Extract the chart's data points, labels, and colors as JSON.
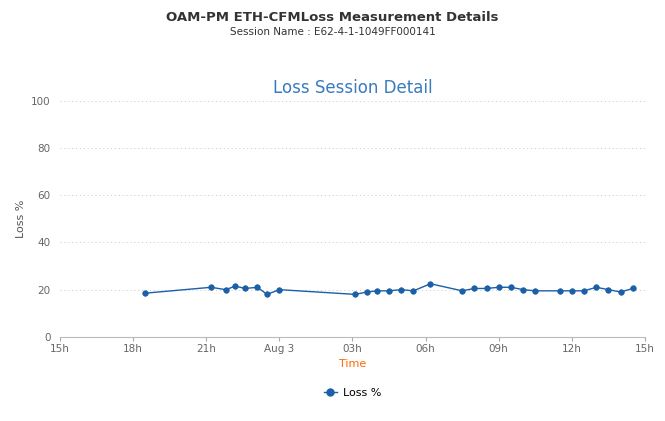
{
  "title": "OAM-PM ETH-CFMLoss Measurement Details",
  "subtitle": "Session Name : E62-4-1-1049FF000141",
  "chart_title": "Loss Session Detail",
  "xlabel": "Time",
  "ylabel": "Loss %",
  "legend_label": "Loss %",
  "ylim": [
    0,
    100
  ],
  "yticks": [
    0,
    20,
    40,
    60,
    80,
    100
  ],
  "xtick_labels": [
    "15h",
    "18h",
    "21h",
    "Aug 3",
    "03h",
    "06h",
    "09h",
    "12h",
    "15h"
  ],
  "xtick_positions": [
    0,
    3,
    6,
    9,
    12,
    15,
    18,
    21,
    24
  ],
  "line_color": "#1a5fa8",
  "marker": "o",
  "marker_size": 4,
  "background_color": "#ffffff",
  "grid_color": "#c8c8c8",
  "title_color": "#333333",
  "subtitle_color": "#333333",
  "chart_title_color": "#3a7abf",
  "data_x": [
    3.5,
    6.2,
    6.8,
    7.2,
    7.6,
    8.1,
    8.5,
    9.0,
    12.1,
    12.6,
    13.0,
    13.5,
    14.0,
    14.5,
    15.2,
    16.5,
    17.0,
    17.5,
    18.0,
    18.5,
    19.0,
    19.5,
    20.5,
    21.0,
    21.5,
    22.0,
    22.5,
    23.0,
    23.5
  ],
  "data_y": [
    18.5,
    21.0,
    20.0,
    21.5,
    20.5,
    21.0,
    18.0,
    20.0,
    18.0,
    19.0,
    19.5,
    19.5,
    20.0,
    19.5,
    22.5,
    19.5,
    20.5,
    20.5,
    21.0,
    21.0,
    20.0,
    19.5,
    19.5,
    19.5,
    19.5,
    21.0,
    20.0,
    19.0,
    20.5
  ],
  "title_fontsize": 9.5,
  "subtitle_fontsize": 7.5,
  "chart_title_fontsize": 12,
  "axis_label_fontsize": 8,
  "tick_fontsize": 7.5,
  "legend_fontsize": 8,
  "xlabel_color": "#ff6600",
  "ylabel_color": "#555555",
  "tick_color": "#666666"
}
